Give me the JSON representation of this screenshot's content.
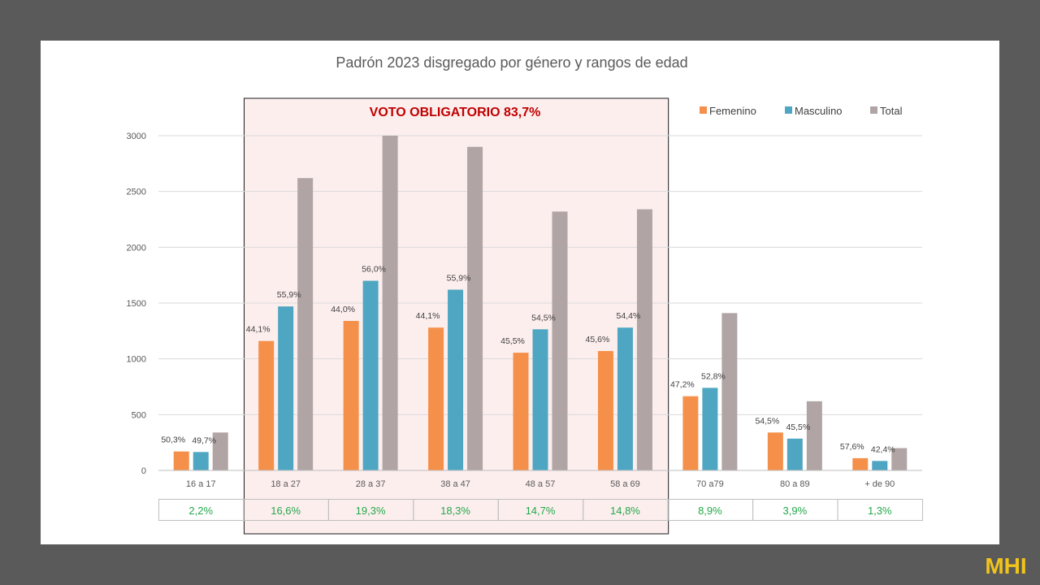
{
  "chart_data": {
    "type": "bar",
    "title": "Padrón 2023 disgregado por género y rangos de edad",
    "categories": [
      "16 a 17",
      "18 a 27",
      "28 a 37",
      "38 a 47",
      "48 a 57",
      "58 a 69",
      "70 a79",
      "80 a 89",
      "+ de 90"
    ],
    "series": [
      {
        "name": "Femenino",
        "color": "#f5904a",
        "values": [
          170,
          1160,
          1340,
          1280,
          1055,
          1070,
          665,
          340,
          110
        ],
        "labels": [
          "50,3%",
          "44,1%",
          "44,0%",
          "44,1%",
          "45,5%",
          "45,6%",
          "47,2%",
          "54,5%",
          "57,6%"
        ]
      },
      {
        "name": "Masculino",
        "color": "#4fa6c2",
        "values": [
          165,
          1470,
          1700,
          1620,
          1265,
          1280,
          740,
          285,
          85
        ],
        "labels": [
          "49,7%",
          "55,9%",
          "56,0%",
          "55,9%",
          "54,5%",
          "54,4%",
          "52,8%",
          "45,5%",
          "42,4%"
        ]
      },
      {
        "name": "Total",
        "color": "#b0a4a4",
        "values": [
          340,
          2620,
          3000,
          2900,
          2320,
          2340,
          1410,
          620,
          200
        ]
      }
    ],
    "ylim": [
      0,
      3000
    ],
    "yticks": [
      "0",
      "500",
      "1000",
      "1500",
      "2000",
      "2500",
      "3000"
    ],
    "grid": true,
    "legend": "top-right",
    "share_row": [
      "2,2%",
      "16,6%",
      "19,3%",
      "18,3%",
      "14,7%",
      "14,8%",
      "8,9%",
      "3,9%",
      "1,3%"
    ],
    "share_color": "#22a84a",
    "highlight": {
      "label": "VOTO OBLIGATORIO 83,7%",
      "from_category": 1,
      "to_category": 5,
      "label_color": "#c00000",
      "fill_color": "#fdeeee"
    }
  },
  "logo": {
    "text": "MHI",
    "color": "#f0c41b"
  }
}
